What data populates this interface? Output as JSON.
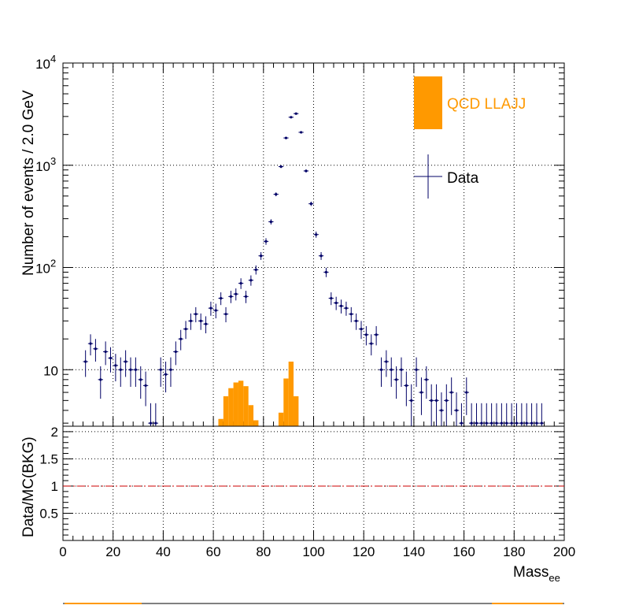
{
  "chart_data": [
    {
      "type": "bar",
      "panel": "main",
      "ylabel": "Number of events / 2.0 GeV",
      "yscale": "log",
      "ylim": [
        2.8,
        10000
      ],
      "xlim": [
        0,
        200
      ],
      "grid": true,
      "bin_width": 2.0,
      "y_tick_labels": {
        "t10": "10",
        "t100": "10",
        "t100_exp": "2",
        "t1000": "10",
        "t1000_exp": "3",
        "t10000": "10",
        "t10000_exp": "4"
      },
      "legend": {
        "placement": "top-right",
        "entries": [
          {
            "label": "QCD LLAJJ",
            "kind": "fill",
            "color": "#ff9900"
          },
          {
            "label": "Data",
            "kind": "marker",
            "color": "#000066"
          }
        ]
      },
      "series": [
        {
          "name": "QCD LLAJJ",
          "kind": "histogram",
          "color": "#ff9900",
          "x": [
            63,
            65,
            67,
            69,
            71,
            73,
            75,
            77,
            87,
            89,
            91,
            93
          ],
          "values": [
            3.3,
            5.5,
            6.6,
            7.5,
            7.8,
            6.9,
            4.5,
            3.2,
            3.8,
            8.2,
            12,
            5.5
          ]
        },
        {
          "name": "Data",
          "kind": "points",
          "color": "#000066",
          "x": [
            9,
            11,
            13,
            15,
            17,
            19,
            21,
            23,
            25,
            27,
            29,
            31,
            33,
            35,
            37,
            39,
            41,
            43,
            45,
            47,
            49,
            51,
            53,
            55,
            57,
            59,
            61,
            63,
            65,
            67,
            69,
            71,
            73,
            75,
            77,
            79,
            81,
            83,
            85,
            87,
            89,
            91,
            93,
            95,
            97,
            99,
            101,
            103,
            105,
            107,
            109,
            111,
            113,
            115,
            117,
            119,
            121,
            123,
            125,
            127,
            129,
            131,
            133,
            135,
            137,
            139,
            141,
            143,
            145,
            147,
            149,
            151,
            153,
            155,
            157,
            159,
            161,
            163,
            165,
            167,
            169,
            171,
            173,
            175,
            177,
            179,
            181,
            183,
            185,
            187,
            189,
            191
          ],
          "values": [
            12,
            18,
            16,
            8,
            15,
            13,
            11,
            10,
            12,
            10,
            10,
            8,
            7,
            3,
            3,
            10,
            9,
            10,
            15,
            20,
            25,
            30,
            35,
            30,
            28,
            40,
            38,
            50,
            35,
            52,
            55,
            70,
            52,
            75,
            95,
            130,
            180,
            280,
            520,
            970,
            1850,
            2950,
            3200,
            2100,
            880,
            420,
            210,
            130,
            90,
            50,
            45,
            42,
            40,
            35,
            30,
            25,
            22,
            18,
            22,
            10,
            12,
            10,
            8,
            10,
            7,
            5,
            10,
            6,
            8,
            5,
            5,
            4,
            5,
            6,
            4,
            3,
            6,
            3,
            3,
            3,
            3,
            3,
            3,
            3,
            3,
            3,
            3,
            3,
            3,
            3,
            3,
            3
          ],
          "errors": [
            3.5,
            4.2,
            4,
            2.8,
            3.9,
            3.6,
            3.3,
            3.2,
            3.5,
            3.2,
            3.2,
            2.8,
            2.6,
            1.7,
            1.7,
            3.2,
            3,
            3.2,
            3.9,
            4.5,
            5,
            5.5,
            5.9,
            5.5,
            5.3,
            6.3,
            6.2,
            7.1,
            5.9,
            7.2,
            7.4,
            8.4,
            7.2,
            8.7,
            9.7,
            11.4,
            13.4,
            16.7,
            22.8,
            31.1,
            43,
            54.3,
            56.6,
            45.8,
            29.7,
            20.5,
            14.5,
            11.4,
            9.5,
            7.1,
            6.7,
            6.5,
            6.3,
            5.9,
            5.5,
            5,
            4.7,
            4.2,
            4.7,
            3.2,
            3.5,
            3.2,
            2.8,
            3.2,
            2.6,
            2.2,
            3.2,
            2.4,
            2.8,
            2.2,
            2.2,
            2,
            2.2,
            2.4,
            2,
            1.7,
            2.4,
            1.7,
            1.7,
            1.7,
            1.7,
            1.7,
            1.7,
            1.7,
            1.7,
            1.7,
            1.7,
            1.7,
            1.7,
            1.7,
            1.7,
            1.7
          ]
        }
      ]
    },
    {
      "type": "line",
      "panel": "ratio",
      "ylabel": "Data/MC(BKG)",
      "xlabel": "Mass",
      "xlabel_subscript": "ee",
      "xlim": [
        0,
        200
      ],
      "ylim": [
        0,
        2.1
      ],
      "grid": true,
      "x_ticks": [
        0,
        20,
        40,
        60,
        80,
        100,
        120,
        140,
        160,
        180,
        200
      ],
      "y_ticks": [
        0.5,
        1,
        1.5,
        2
      ],
      "y_tick_labels": [
        "0.5",
        "1",
        "1.5",
        "2"
      ],
      "series": [
        {
          "kind": "reference-line",
          "color": "#cc0000",
          "style": "dashed",
          "x": [
            0,
            200
          ],
          "values": [
            1,
            1
          ]
        }
      ]
    }
  ]
}
